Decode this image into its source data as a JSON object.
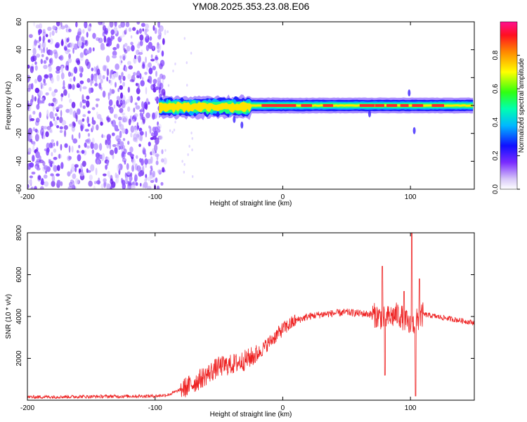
{
  "title": "YM08.2025.353.23.08.E06",
  "chart_data": [
    {
      "type": "heatmap",
      "xlabel": "Height of straight line (km)",
      "ylabel": "Frequency (Hz)",
      "xlim": [
        -200,
        150
      ],
      "ylim": [
        -60,
        60
      ],
      "xticks": [
        -200,
        -100,
        0,
        100
      ],
      "xtick_labels": [
        "-200",
        "-100",
        "0",
        "100"
      ],
      "yticks": [
        -60,
        -40,
        -20,
        0,
        20,
        40,
        60
      ],
      "ytick_labels": [
        "-60",
        "-40",
        "-20",
        "0",
        "20",
        "40",
        "60"
      ],
      "colorbar": {
        "label": "Normalized spectral amplitude",
        "range": [
          0,
          1
        ],
        "ticks": [
          0,
          0.2,
          0.4,
          0.6,
          0.8
        ],
        "tick_labels": [
          "0.0",
          "0.2",
          "0.4",
          "0.6",
          "0.8"
        ]
      },
      "noise_region_x": [
        -200,
        -92
      ],
      "ridge_center_hz": 0,
      "ridge_halfwidth_hz": 4
    },
    {
      "type": "line",
      "xlabel": "Height of straight line (km)",
      "ylabel": "SNR (10 * v/v)",
      "xlim": [
        -200,
        150
      ],
      "ylim": [
        0,
        8000
      ],
      "xticks": [
        -200,
        -100,
        0,
        100
      ],
      "xtick_labels": [
        "-200",
        "-100",
        "0",
        "100"
      ],
      "yticks": [
        2000,
        4000,
        6000,
        8000
      ],
      "ytick_labels": [
        "2000",
        "4000",
        "6000",
        "8000"
      ],
      "series": [
        {
          "name": "SNR",
          "color": "#ee2222",
          "envelope_x": [
            -200,
            -100,
            -90,
            -80,
            -70,
            -60,
            -50,
            -40,
            -30,
            -20,
            -10,
            0,
            10,
            20,
            30,
            40,
            50,
            60,
            70,
            75,
            80,
            85,
            90,
            95,
            100,
            105,
            110,
            120,
            130,
            140,
            150
          ],
          "envelope_y": [
            150,
            200,
            250,
            500,
            800,
            1200,
            1600,
            1700,
            1900,
            2200,
            2800,
            3400,
            3800,
            4000,
            4100,
            4150,
            4200,
            4150,
            4100,
            4000,
            3900,
            4000,
            4100,
            3900,
            3500,
            3800,
            4100,
            4000,
            3900,
            3800,
            3700
          ],
          "spikes": [
            {
              "x": 78,
              "y": 6400
            },
            {
              "x": 80,
              "y": 1200
            },
            {
              "x": 95,
              "y": 5200
            },
            {
              "x": 101,
              "y": 8000
            },
            {
              "x": 104,
              "y": 200
            },
            {
              "x": 107,
              "y": 5800
            }
          ]
        }
      ]
    }
  ]
}
